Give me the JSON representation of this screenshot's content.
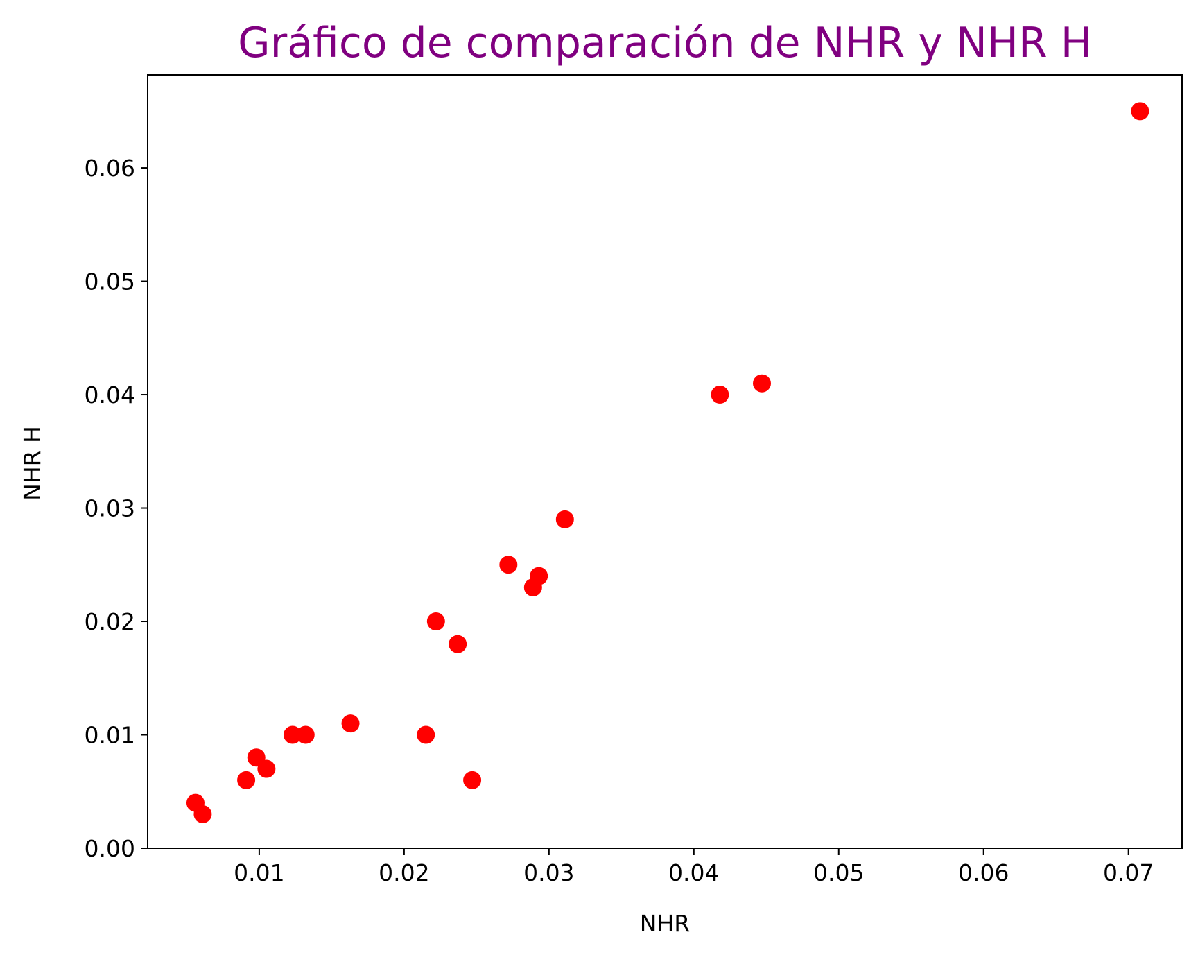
{
  "chart_data": {
    "type": "scatter",
    "title": "Gráfico de comparación de NHR y NHR H",
    "xlabel": "NHR",
    "ylabel": "NHR H",
    "xlim": [
      0.0023,
      0.0737
    ],
    "ylim": [
      0.0,
      0.0682
    ],
    "xticks": [
      0.01,
      0.02,
      0.03,
      0.04,
      0.05,
      0.06,
      0.07
    ],
    "yticks": [
      0.0,
      0.01,
      0.02,
      0.03,
      0.04,
      0.05,
      0.06
    ],
    "xtick_labels": [
      "0.01",
      "0.02",
      "0.03",
      "0.04",
      "0.05",
      "0.06",
      "0.07"
    ],
    "ytick_labels": [
      "0.00",
      "0.01",
      "0.02",
      "0.03",
      "0.04",
      "0.05",
      "0.06"
    ],
    "grid": false,
    "points": [
      {
        "x": 0.0056,
        "y": 0.004
      },
      {
        "x": 0.0061,
        "y": 0.003
      },
      {
        "x": 0.0091,
        "y": 0.006
      },
      {
        "x": 0.0098,
        "y": 0.008
      },
      {
        "x": 0.0105,
        "y": 0.007
      },
      {
        "x": 0.0123,
        "y": 0.01
      },
      {
        "x": 0.0132,
        "y": 0.01
      },
      {
        "x": 0.0163,
        "y": 0.011
      },
      {
        "x": 0.0215,
        "y": 0.01
      },
      {
        "x": 0.0222,
        "y": 0.02
      },
      {
        "x": 0.0237,
        "y": 0.018
      },
      {
        "x": 0.0247,
        "y": 0.006
      },
      {
        "x": 0.0272,
        "y": 0.025
      },
      {
        "x": 0.0289,
        "y": 0.023
      },
      {
        "x": 0.0293,
        "y": 0.024
      },
      {
        "x": 0.0311,
        "y": 0.029
      },
      {
        "x": 0.0418,
        "y": 0.04
      },
      {
        "x": 0.0447,
        "y": 0.041
      },
      {
        "x": 0.0708,
        "y": 0.065
      }
    ],
    "marker_color": "#ff0000",
    "title_color": "#800080"
  }
}
